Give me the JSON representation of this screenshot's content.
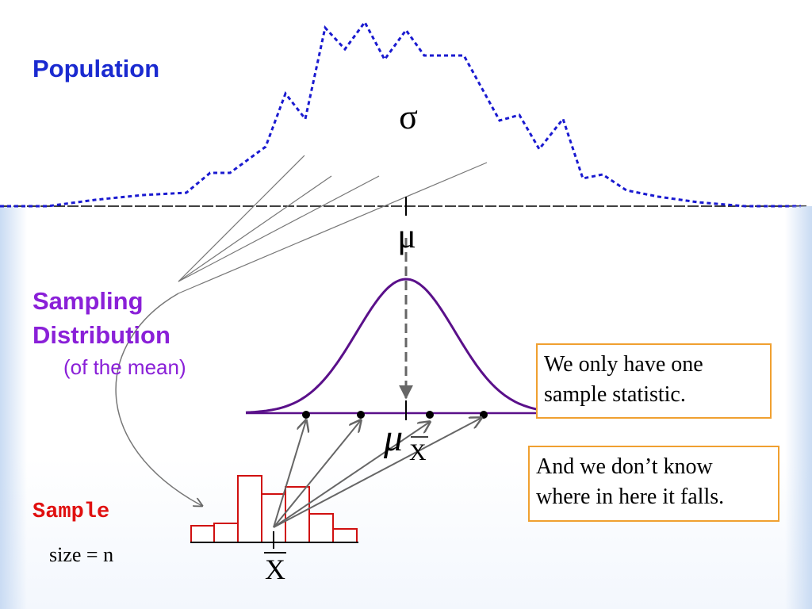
{
  "population": {
    "label": "Population",
    "sigma": "σ",
    "mu": "μ"
  },
  "sampling": {
    "label_lines": [
      "Sampling",
      "Distribution"
    ],
    "note": "(of the mean)",
    "mu": "μ",
    "subscript": "X"
  },
  "callouts": [
    "We only have one sample statistic.",
    "And we don’t know where in here it falls."
  ],
  "sample": {
    "label": "Sample",
    "size": "size = n",
    "xbar": "X"
  }
}
